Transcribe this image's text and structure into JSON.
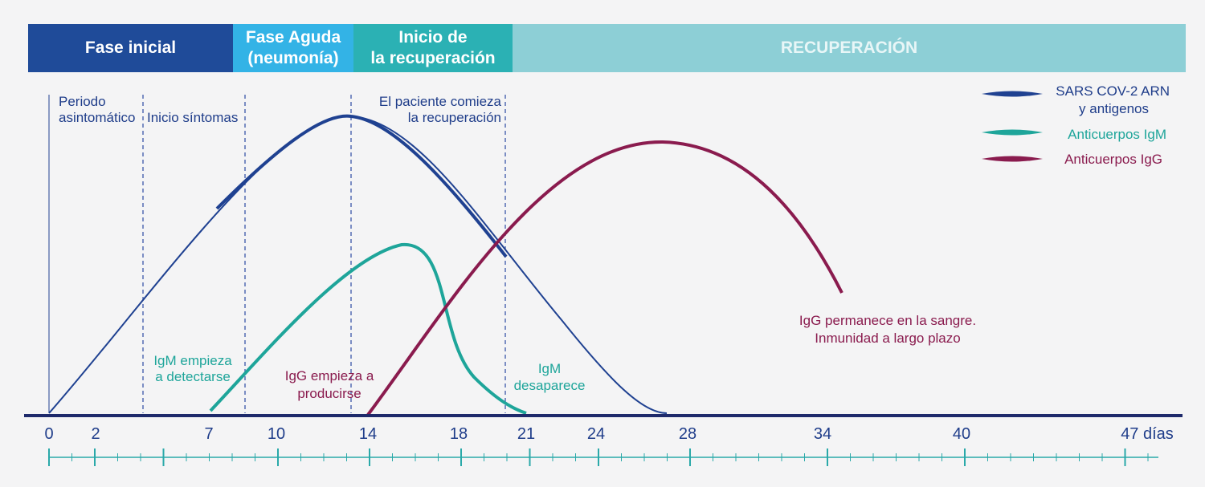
{
  "phases": [
    {
      "label": "Fase inicial"
    },
    {
      "label": "Fase Aguda\n(neumonía)"
    },
    {
      "label": "Inicio de\nla recuperación"
    },
    {
      "label": "RECUPERACIÓN"
    }
  ],
  "markers": {
    "asymptomatic_line1": "Periodo",
    "asymptomatic_line2": "asintomático",
    "symptoms": "Inicio síntomas",
    "recovery_line1": "El paciente comieza",
    "recovery_line2": "la recuperación"
  },
  "legend": {
    "rna_line1": "SARS COV-2 ARN",
    "rna_line2": "y antigenos",
    "igm": "Anticuerpos IgM",
    "igg": "Anticuerpos IgG"
  },
  "annotations": {
    "igm_start_line1": "IgM empieza",
    "igm_start_line2": "a detectarse",
    "igg_start_line1": "IgG empieza a",
    "igg_start_line2": "producirse",
    "igm_gone_line1": "IgM",
    "igm_gone_line2": "desaparece",
    "igg_stays_line1": "IgG permanece en la sangre.",
    "igg_stays_line2": "Inmunidad a largo plazo"
  },
  "axis": {
    "ticks": [
      "0",
      "2",
      "7",
      "10",
      "14",
      "18",
      "21",
      "24",
      "28",
      "34",
      "40",
      "47 días"
    ]
  },
  "colors": {
    "rna": "#1f4191",
    "igm": "#1ea59a",
    "igg": "#8a1b4e",
    "axis": "#1e2a6b",
    "ticks": "#2aa9a9"
  }
}
